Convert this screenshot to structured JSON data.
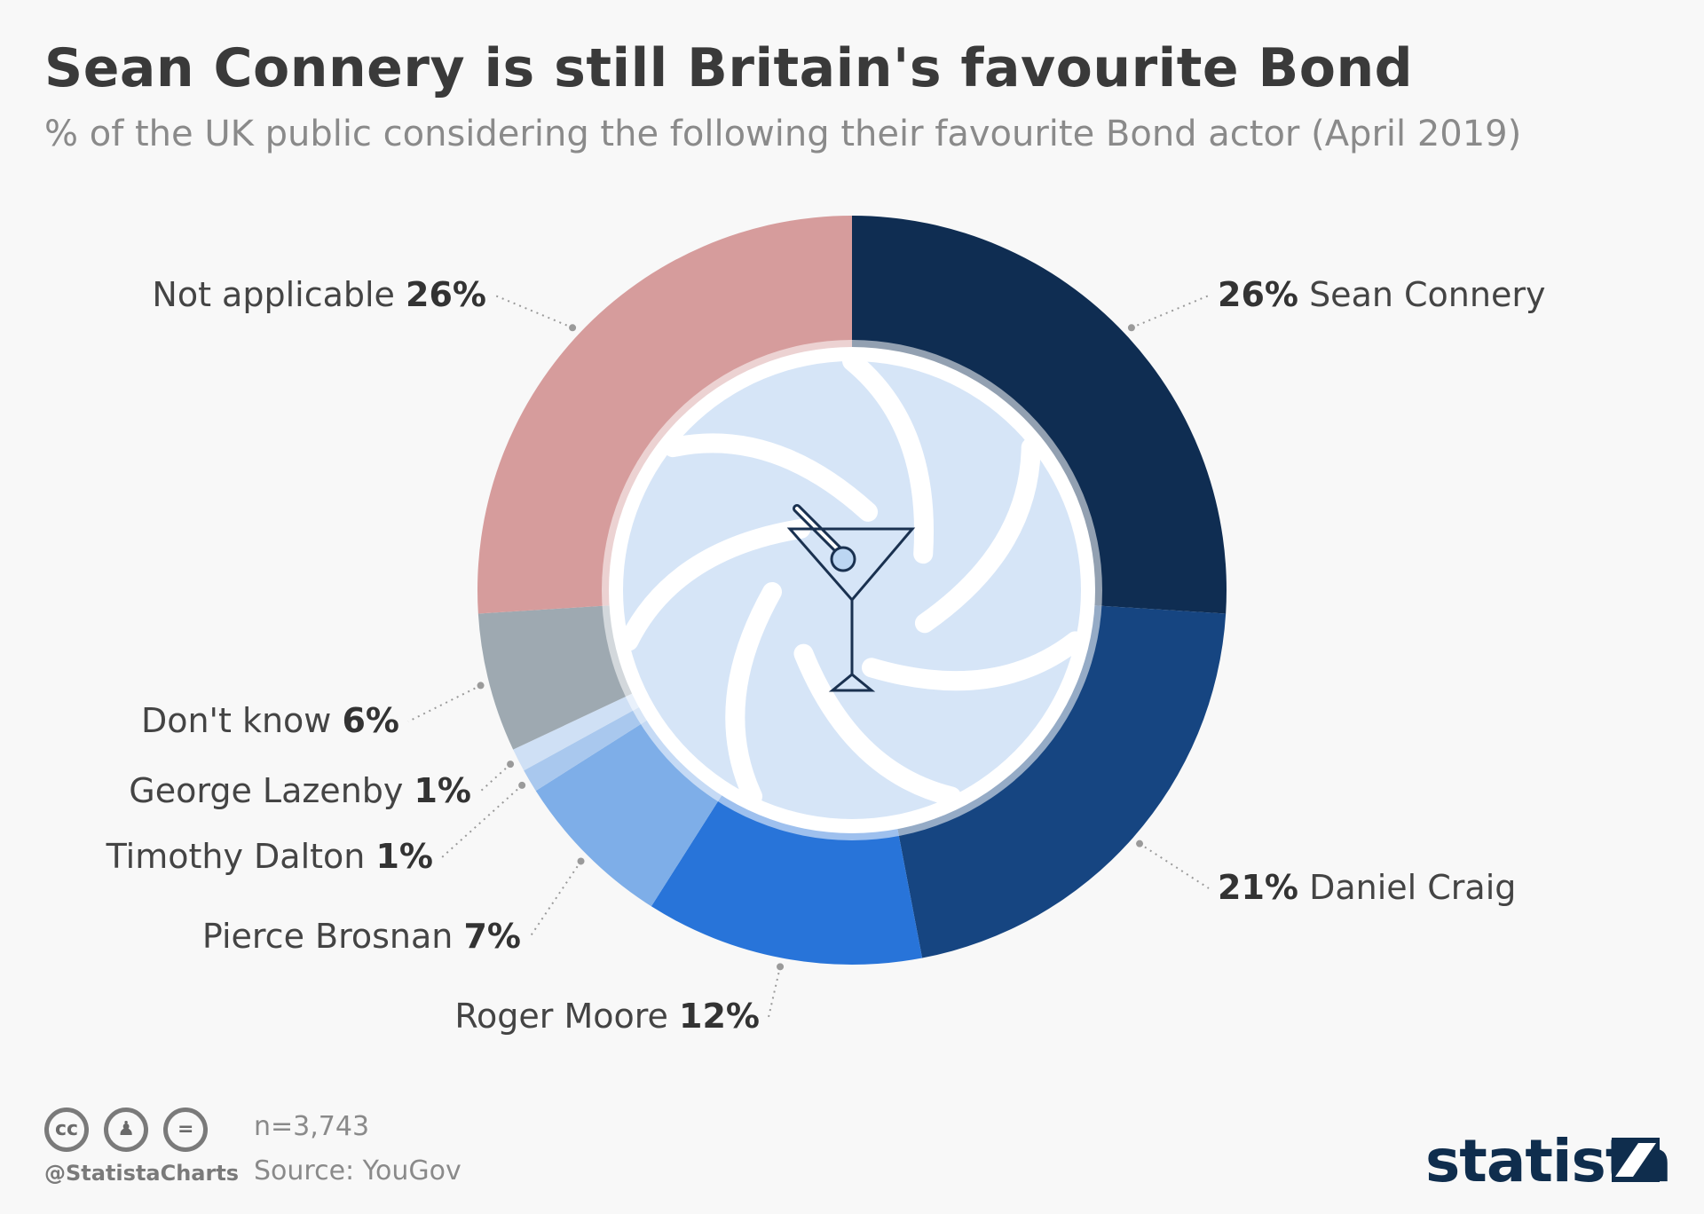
{
  "title": "Sean Connery is still Britain's favourite Bond",
  "subtitle": "% of the UK public considering the following their favourite Bond actor (April 2019)",
  "chart_data": {
    "type": "pie",
    "variant": "donut",
    "series": [
      {
        "label": "Sean Connery",
        "value": 26,
        "value_text": "26%",
        "color": "#0f2d52",
        "label_order": "value-first"
      },
      {
        "label": "Daniel Craig",
        "value": 21,
        "value_text": "21%",
        "color": "#164581",
        "label_order": "value-first"
      },
      {
        "label": "Roger Moore",
        "value": 12,
        "value_text": "12%",
        "color": "#2874d9",
        "label_order": "name-first"
      },
      {
        "label": "Pierce Brosnan",
        "value": 7,
        "value_text": "7%",
        "color": "#7eaee8",
        "label_order": "name-first"
      },
      {
        "label": "Timothy Dalton",
        "value": 1,
        "value_text": "1%",
        "color": "#a9c8ee",
        "label_order": "name-first"
      },
      {
        "label": "George Lazenby",
        "value": 1,
        "value_text": "1%",
        "color": "#cfe0f5",
        "label_order": "name-first"
      },
      {
        "label": "Don't know",
        "value": 6,
        "value_text": "6%",
        "color": "#9ea9b1",
        "label_order": "name-first"
      },
      {
        "label": "Not applicable",
        "value": 26,
        "value_text": "26%",
        "color": "#d69c9c",
        "label_order": "name-first"
      }
    ],
    "center_icon": "martini-glass-icon",
    "center_background": "gun-barrel-swirl"
  },
  "footer": {
    "sample": "n=3,743",
    "source": "Source: YouGov",
    "handle": "@StatistaCharts",
    "license_icons": [
      "cc-icon",
      "by-icon",
      "nd-icon"
    ],
    "brand": "statista"
  }
}
